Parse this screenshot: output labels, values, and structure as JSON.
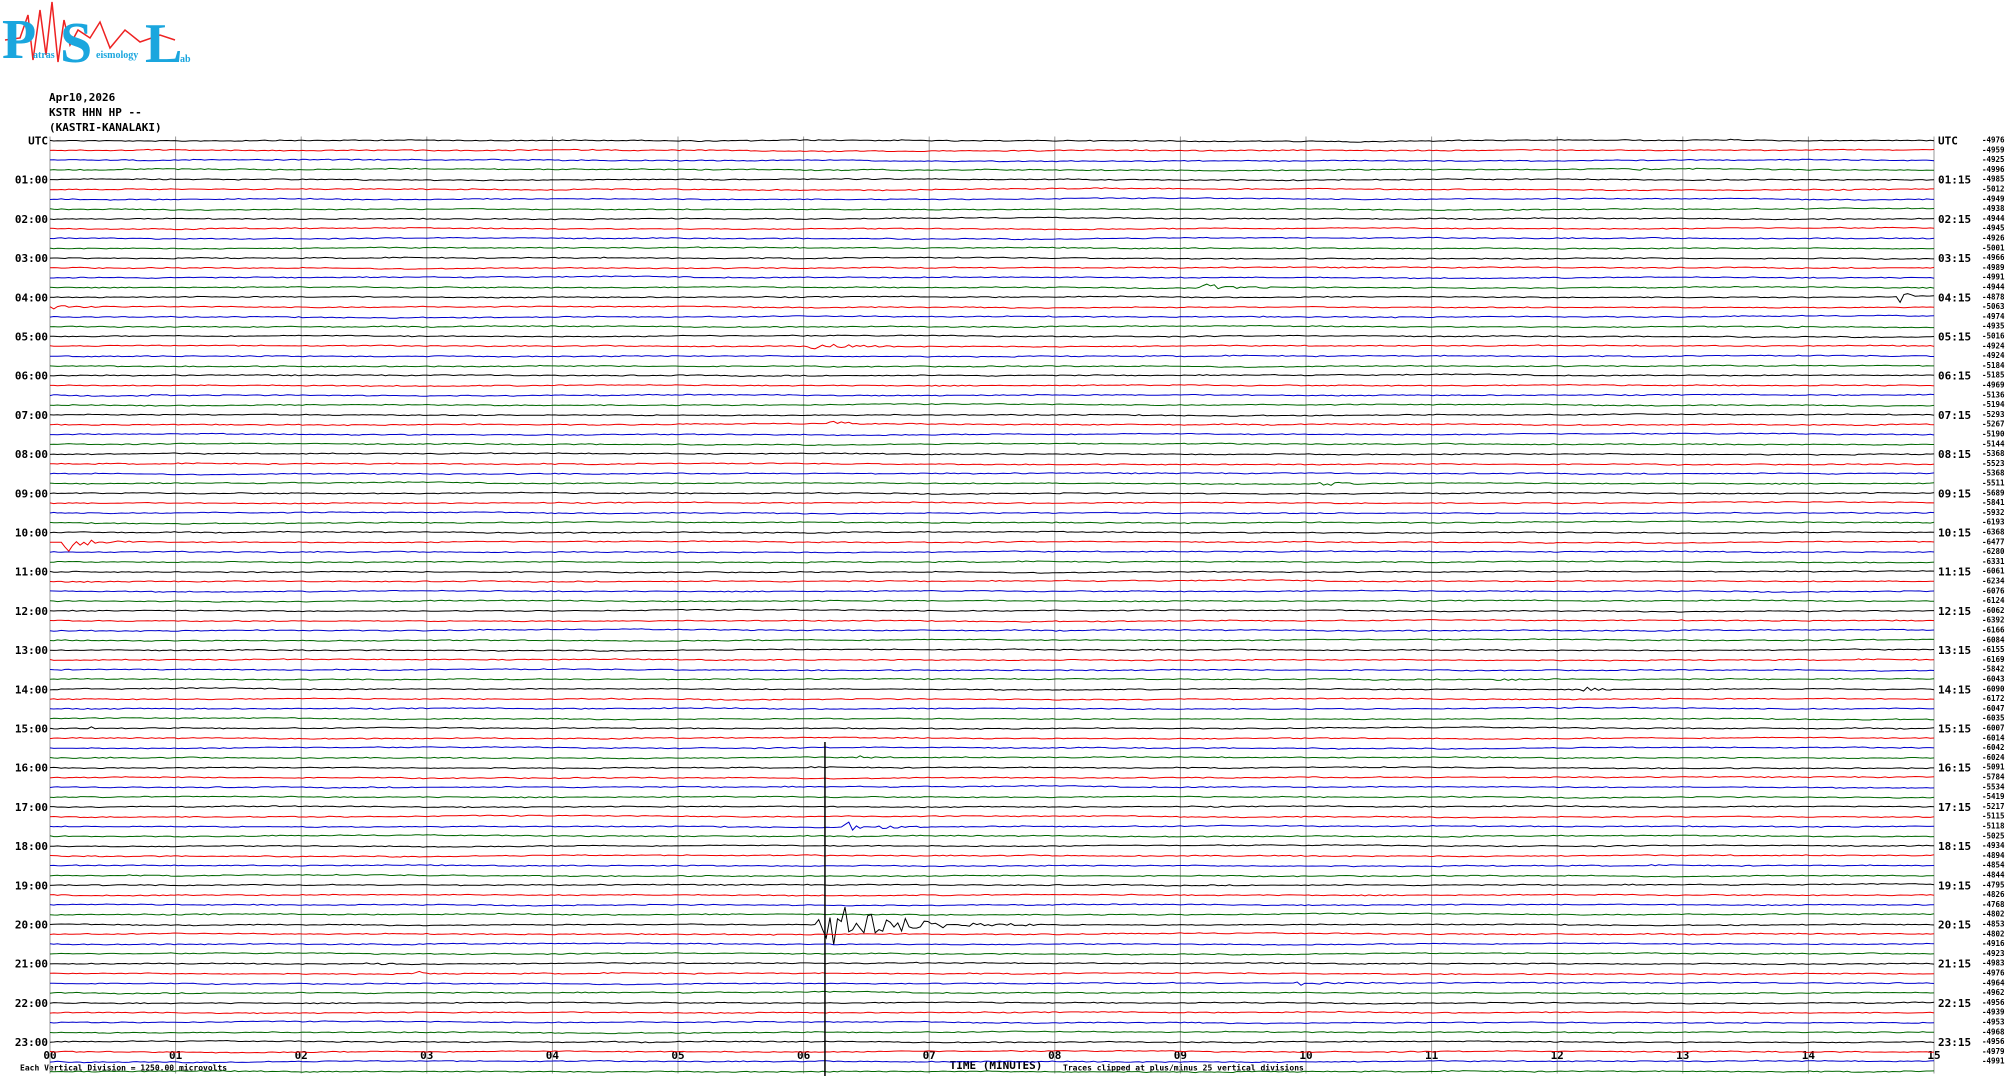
{
  "logo": {
    "letters": [
      "P",
      "S",
      "L"
    ],
    "words": [
      "atras",
      "eismology",
      "ab"
    ]
  },
  "header": {
    "date": "Apr10,2026",
    "station": "KSTR HHN HP --",
    "site": "(KASTRI-KANALAKI)"
  },
  "left_labels": [
    "UTC",
    "01:00",
    "02:00",
    "03:00",
    "04:00",
    "05:00",
    "06:00",
    "07:00",
    "08:00",
    "09:00",
    "10:00",
    "11:00",
    "12:00",
    "13:00",
    "14:00",
    "15:00",
    "16:00",
    "17:00",
    "18:00",
    "19:00",
    "20:00",
    "21:00",
    "22:00",
    "23:00"
  ],
  "right_labels": [
    "UTC",
    "01:15",
    "02:15",
    "03:15",
    "04:15",
    "05:15",
    "06:15",
    "07:15",
    "08:15",
    "09:15",
    "10:15",
    "11:15",
    "12:15",
    "13:15",
    "14:15",
    "15:15",
    "16:15",
    "17:15",
    "18:15",
    "19:15",
    "20:15",
    "21:15",
    "22:15",
    "23:15"
  ],
  "amplitudes": [
    -4976,
    -4959,
    -4925,
    -4996,
    -4985,
    -5012,
    -4949,
    -4938,
    -4944,
    -4945,
    -4926,
    -5001,
    -4966,
    -4989,
    -4991,
    -4944,
    -4878,
    -5063,
    -4974,
    -4935,
    -5016,
    -4924,
    -4924,
    -5184,
    -5185,
    -4969,
    -5136,
    -5194,
    -5293,
    -5267,
    -5190,
    -5144,
    -5368,
    -5523,
    -5368,
    -5511,
    -5689,
    -5841,
    -5932,
    -6193,
    -6368,
    -6477,
    -6280,
    -6331,
    -6061,
    -6234,
    -6076,
    -6124,
    -6062,
    -6392,
    -6166,
    -6084,
    -6155,
    -6169,
    -5842,
    -6043,
    -6090,
    -6172,
    -6047,
    -6035,
    -6007,
    -6014,
    -6042,
    -6024,
    -5091,
    -5784,
    -5534,
    -5419,
    -5217,
    -5115,
    -5118,
    -5025,
    -4934,
    -4894,
    -4854,
    -4844,
    -4795,
    -4826,
    -4768,
    -4802,
    -4853,
    -4802,
    -4916,
    -4923,
    -4983,
    -4976,
    -4964,
    -4962,
    -4956,
    -4939,
    -4953,
    -4968,
    -4956,
    -4979,
    -4991
  ],
  "x_axis": {
    "ticks": [
      "00",
      "01",
      "02",
      "03",
      "04",
      "05",
      "06",
      "07",
      "08",
      "09",
      "10",
      "11",
      "12",
      "13",
      "14",
      "15"
    ],
    "title": "TIME (MINUTES)"
  },
  "notes": {
    "scale": "Each Vertical Division = 1250.00 microvolts",
    "clip": "Traces clipped at plus/minus 25 vertical divisions"
  }
}
